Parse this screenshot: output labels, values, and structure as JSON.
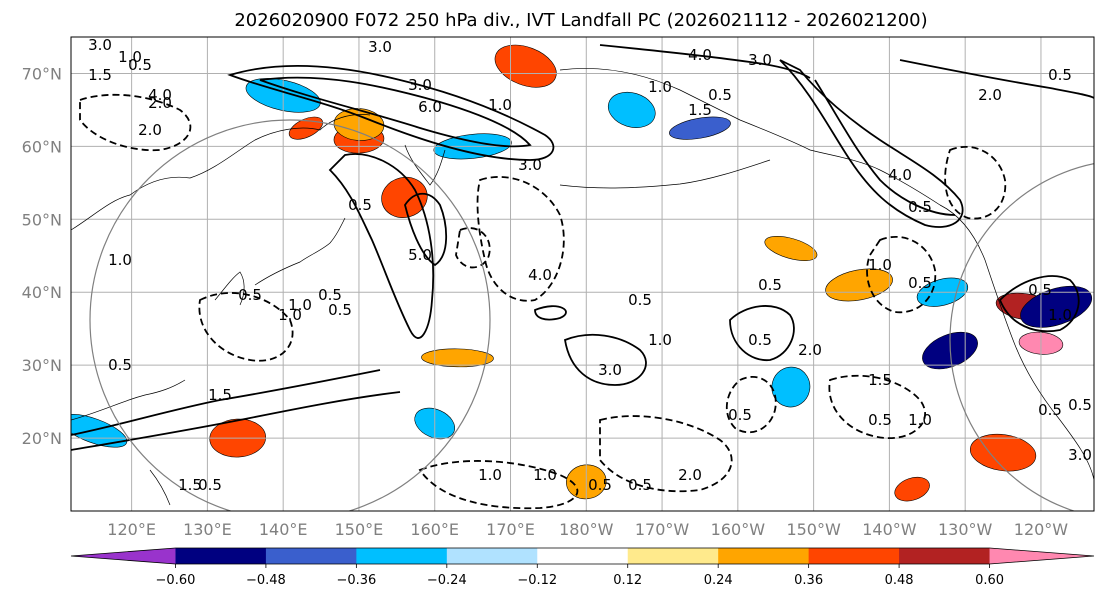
{
  "chart_data": {
    "type": "heatmap",
    "title": "2026020900 F072 250 hPa div., IVT Landfall PC (2026021112 - 2026021200)",
    "lon_ticks": [
      "120°E",
      "130°E",
      "140°E",
      "150°E",
      "160°E",
      "170°E",
      "180°W",
      "170°W",
      "160°W",
      "150°W",
      "140°W",
      "130°W",
      "120°W"
    ],
    "lat_ticks": [
      "70°N",
      "60°N",
      "50°N",
      "40°N",
      "30°N",
      "20°N"
    ],
    "lon_range_east": [
      112,
      247
    ],
    "lat_range": [
      10,
      75
    ],
    "grid": true,
    "colorbar": {
      "extend": "both",
      "ticks": [
        "−0.60",
        "−0.48",
        "−0.36",
        "−0.24",
        "−0.12",
        "0.12",
        "0.24",
        "0.36",
        "0.48",
        "0.60"
      ],
      "levels": [
        -0.6,
        -0.48,
        -0.36,
        -0.24,
        -0.12,
        0.12,
        0.24,
        0.36,
        0.48,
        0.6
      ],
      "colors": [
        "#9933cc",
        "#000080",
        "#3a5fcd",
        "#00bfff",
        "#b0e2ff",
        "#ffffff",
        "#ffea8c",
        "#ffa500",
        "#ff4500",
        "#b22222",
        "#ff88b0"
      ]
    },
    "contour_labels": [
      "3.0",
      "1.0",
      "4.0",
      "3.0",
      "2.0",
      "0.5",
      "1.5",
      "4.0",
      "2.0",
      "1.0",
      "0.5",
      "1.0",
      "3.0",
      "6.0",
      "2.0",
      "0.5",
      "3.0",
      "1.5",
      "3.0",
      "4.0",
      "0.5",
      "1.0",
      "0.5",
      "1.0",
      "0.5",
      "5.0",
      "0.5",
      "0.5",
      "1.0",
      "4.0",
      "0.5",
      "1.0",
      "3.0",
      "0.5",
      "0.5",
      "2.0",
      "1.0",
      "0.5",
      "0.5",
      "1.0",
      "1.5",
      "0.5",
      "1.0",
      "0.5",
      "3.0",
      "1.0",
      "1.0",
      "0.5",
      "0.5",
      "2.0",
      "0.5",
      "1.5",
      "0.5",
      "1.5",
      "0.5",
      "0.5"
    ],
    "divergence_patches": [
      {
        "lon": 143,
        "lat": 62.5,
        "value": 0.45
      },
      {
        "lon": 150,
        "lat": 61,
        "value": 0.4
      },
      {
        "lon": 172,
        "lat": 71,
        "value": 0.45
      },
      {
        "lon": 165,
        "lat": 60,
        "value": -0.3
      },
      {
        "lon": 186,
        "lat": 65,
        "value": -0.3
      },
      {
        "lon": 195,
        "lat": 62.5,
        "value": -0.45
      },
      {
        "lon": 140,
        "lat": 67,
        "value": -0.3
      },
      {
        "lon": 156,
        "lat": 53,
        "value": 0.4
      },
      {
        "lon": 238,
        "lat": 38,
        "value": 0.5
      },
      {
        "lon": 242,
        "lat": 38,
        "value": -0.55
      },
      {
        "lon": 240,
        "lat": 33,
        "value": 0.62
      },
      {
        "lon": 228,
        "lat": 32,
        "value": -0.5
      },
      {
        "lon": 163,
        "lat": 31,
        "value": 0.35
      },
      {
        "lon": 160,
        "lat": 22,
        "value": -0.3
      },
      {
        "lon": 134,
        "lat": 20,
        "value": 0.4
      },
      {
        "lon": 115,
        "lat": 21,
        "value": -0.3
      },
      {
        "lon": 180,
        "lat": 14,
        "value": 0.35
      },
      {
        "lon": 207,
        "lat": 46,
        "value": 0.35
      },
      {
        "lon": 216,
        "lat": 41,
        "value": 0.35
      },
      {
        "lon": 207,
        "lat": 27,
        "value": -0.3
      },
      {
        "lon": 227,
        "lat": 40,
        "value": -0.3
      },
      {
        "lon": 235,
        "lat": 18,
        "value": 0.4
      },
      {
        "lon": 223,
        "lat": 13,
        "value": 0.4
      },
      {
        "lon": 150,
        "lat": 63,
        "value": 0.35
      }
    ]
  }
}
